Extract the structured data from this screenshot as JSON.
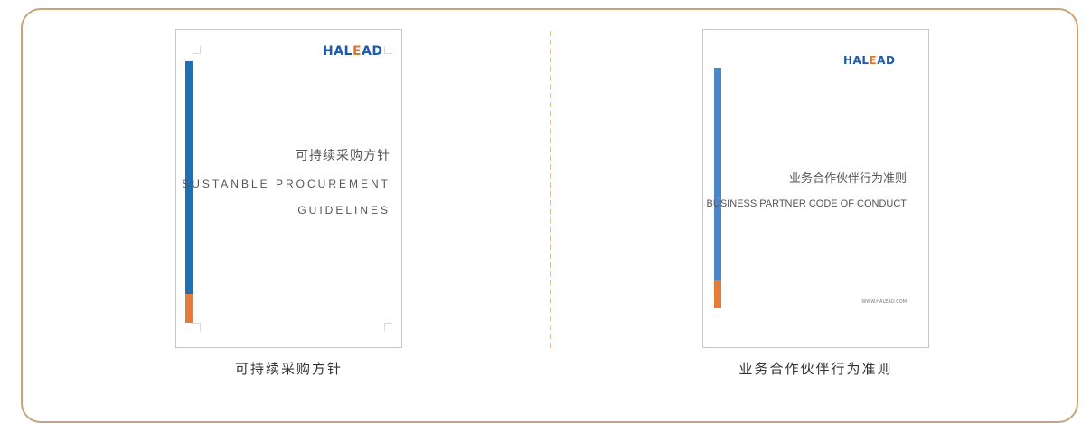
{
  "colors": {
    "frame_border": "#c9a47a",
    "divider": "#e2bf9c",
    "brand_blue": "#1f6fb5",
    "brand_orange": "#e37c3a"
  },
  "documents": [
    {
      "logo_a": "HAL",
      "logo_b": "E",
      "logo_c": "AD",
      "title_cn": "可持续采购方针",
      "title_en_line1": "SUSTANBLE PROCUREMENT",
      "title_en_line2": "GUIDELINES",
      "caption": "可持续采购方针"
    },
    {
      "logo_a": "HAL",
      "logo_b": "E",
      "logo_c": "AD",
      "title_cn": "业务合作伙伴行为准则",
      "title_en_line1": "BUSINESS PARTNER CODE OF CONDUCT",
      "website": "WWW.HALEAD.COM",
      "caption": "业务合作伙伴行为准则"
    }
  ]
}
